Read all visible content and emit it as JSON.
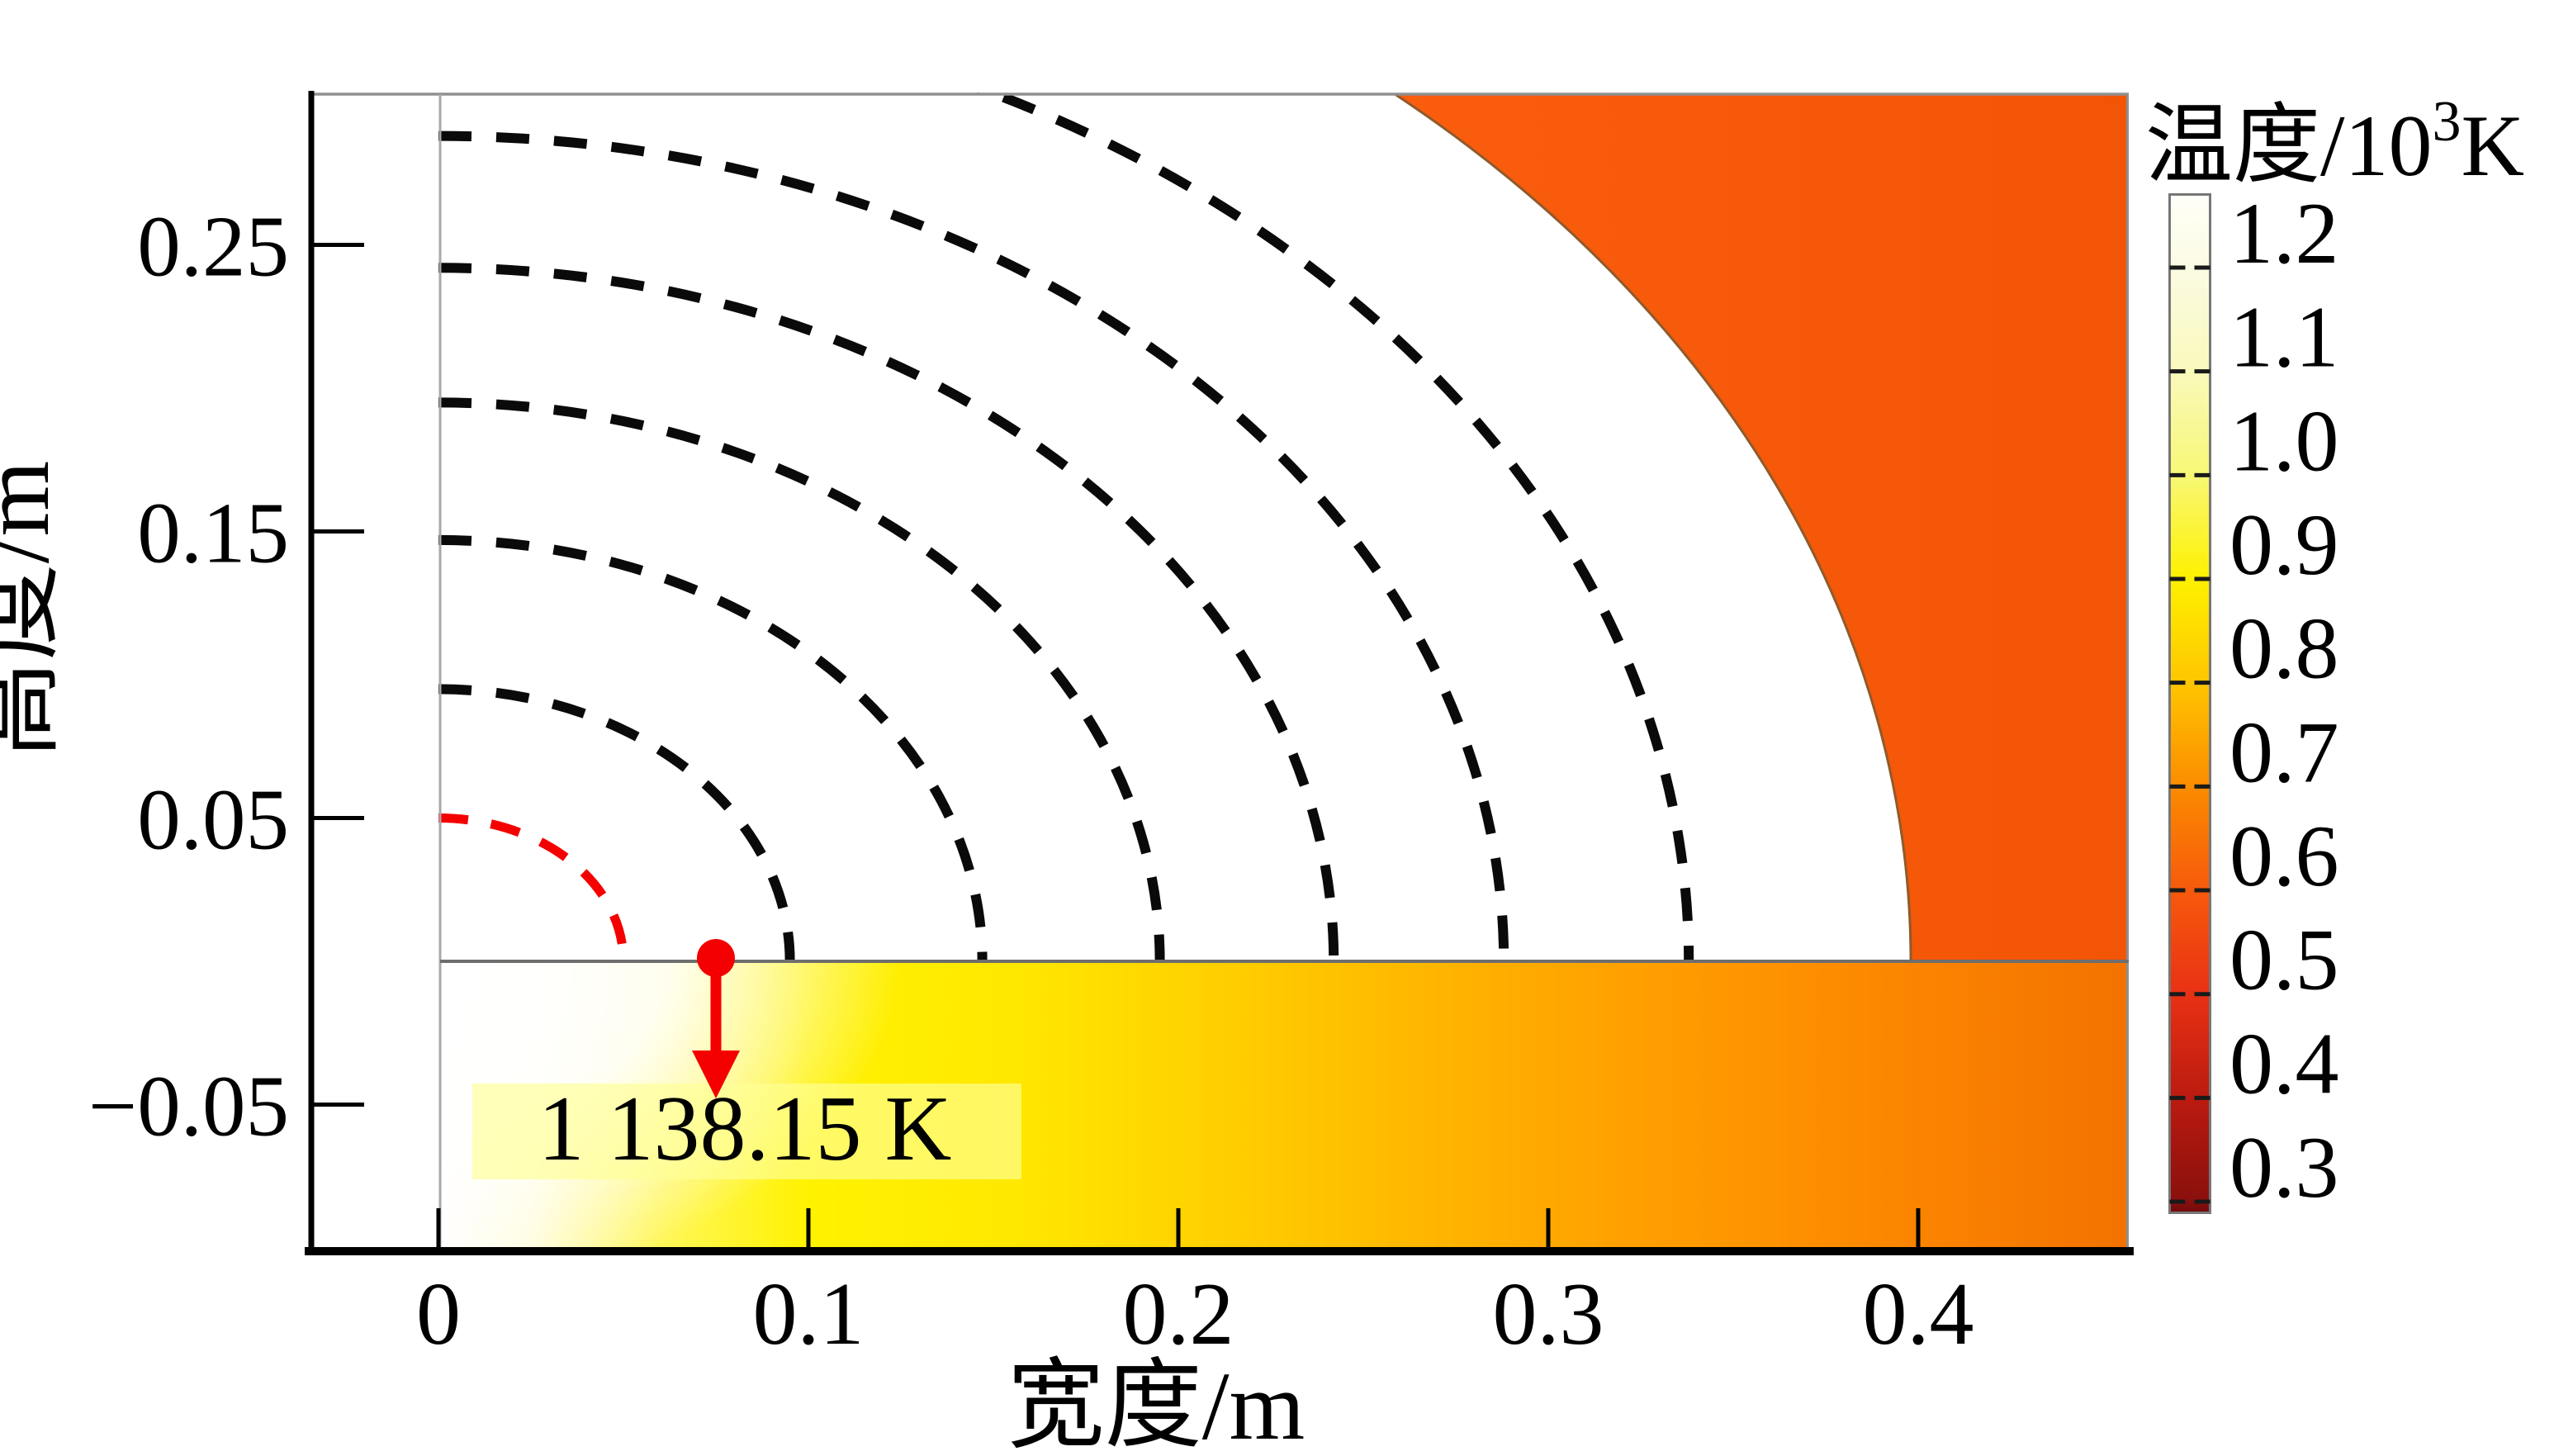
{
  "ui": {
    "colorbar_title_prefix": "温度/10",
    "colorbar_title_sup": "3",
    "colorbar_title_suffix": "K"
  },
  "chart_data": {
    "type": "heatmap",
    "title": "",
    "xlabel": "宽度/m",
    "ylabel": "高度/m",
    "x_range_m": [
      -0.035,
      0.457
    ],
    "y_range_m": [
      -0.1,
      0.303
    ],
    "grid": false,
    "legend_position": "none",
    "x_ticks": [
      {
        "v": 0.0,
        "label": "0"
      },
      {
        "v": 0.1,
        "label": "0.1"
      },
      {
        "v": 0.2,
        "label": "0.2"
      },
      {
        "v": 0.3,
        "label": "0.3"
      },
      {
        "v": 0.4,
        "label": "0.4"
      }
    ],
    "y_ticks": [
      {
        "v": 0.25,
        "label": "0.25"
      },
      {
        "v": 0.15,
        "label": "0.15"
      },
      {
        "v": 0.05,
        "label": "0.05"
      },
      {
        "v": -0.05,
        "label": "−0.05"
      }
    ],
    "colorbar": {
      "title": "温度/10³K",
      "unit_scale": "10^3 K",
      "tick_values": [
        1.2,
        1.1,
        1.0,
        0.9,
        0.8,
        0.7,
        0.6,
        0.5,
        0.4,
        0.3
      ],
      "tick_labels": [
        "1.2",
        "1.1",
        "1.0",
        "0.9",
        "0.8",
        "0.7",
        "0.6",
        "0.5",
        "0.4",
        "0.3"
      ],
      "value_top": 1.269,
      "value_bottom": 0.2897,
      "gradient": [
        {
          "value": 1.269,
          "color": "#FFFFF8"
        },
        {
          "value": 1.2,
          "color": "#FBFBE4"
        },
        {
          "value": 1.1,
          "color": "#F9F9BC"
        },
        {
          "value": 1.0,
          "color": "#F8F876"
        },
        {
          "value": 0.9,
          "color": "#FDF100"
        },
        {
          "value": 0.8,
          "color": "#FFC600"
        },
        {
          "value": 0.7,
          "color": "#FB8C00"
        },
        {
          "value": 0.6,
          "color": "#F75A0C"
        },
        {
          "value": 0.5,
          "color": "#E93114"
        },
        {
          "value": 0.4,
          "color": "#BB1B10"
        },
        {
          "value": 0.3,
          "color": "#8A100D"
        },
        {
          "value": 0.2897,
          "color": "#700B0B"
        }
      ]
    },
    "isotherms": {
      "black_dashed_radii_m": [
        0.095,
        0.147,
        0.195,
        0.242,
        0.288,
        0.338
      ],
      "red_dashed": {
        "radius_m": 0.05,
        "temperature_K": 1138.15
      }
    },
    "hot_zone_boundary_radius_m": 0.398,
    "regions": {
      "hot_core_color": "#FFFFFF",
      "outer_region_color_near": "#FA5D0E",
      "outer_region_color_far": "#F25506",
      "surface_strip_gradient": [
        {
          "x_m": 0.0,
          "color": "#FFFFFF"
        },
        {
          "x_m": 0.025,
          "color": "#FFFCDC"
        },
        {
          "x_m": 0.06,
          "color": "#FFF75C"
        },
        {
          "x_m": 0.1,
          "color": "#FFF200"
        },
        {
          "x_m": 0.155,
          "color": "#FFE800"
        },
        {
          "x_m": 0.2,
          "color": "#FFD400"
        },
        {
          "x_m": 0.25,
          "color": "#FFBE00"
        },
        {
          "x_m": 0.3,
          "color": "#FFA800"
        },
        {
          "x_m": 0.35,
          "color": "#FF9600"
        },
        {
          "x_m": 0.405,
          "color": "#FA8200"
        },
        {
          "x_m": 0.457,
          "color": "#F37200"
        }
      ]
    },
    "annotation": {
      "text": "1 138.15 K",
      "x_m": 0.075,
      "y_m": 0,
      "arrow_color": "#F40000",
      "box_color": "rgba(255,255,150,0.66)"
    }
  }
}
